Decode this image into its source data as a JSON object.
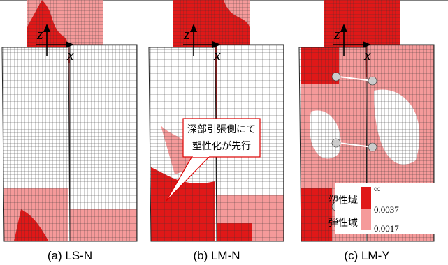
{
  "panels": [
    {
      "caption": "(a) LS-N",
      "axis_z": "z",
      "axis_x": "x"
    },
    {
      "caption": "(b) LM-N",
      "axis_z": "z",
      "axis_x": "x"
    },
    {
      "caption": "(c) LM-Y",
      "axis_z": "z",
      "axis_x": "x"
    }
  ],
  "callout": {
    "lines": [
      "深部引張側にて",
      "塑性化が先行"
    ]
  },
  "legend": {
    "labels": [
      "塑性域",
      "弾性域"
    ],
    "values": [
      "∞",
      "0.0037",
      "0.0017"
    ]
  }
}
